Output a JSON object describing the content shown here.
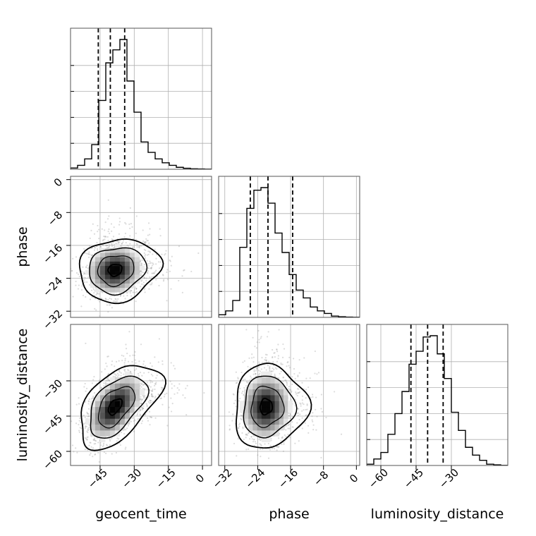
{
  "chart_data": {
    "type": "corner",
    "parameters": [
      {
        "key": "geocent_time",
        "label": "geocent_time",
        "range": [
          -58,
          4
        ],
        "ticks": [
          -45,
          -30,
          -15,
          0
        ],
        "tick_labels": [
          "−45",
          "−30",
          "−15",
          "0"
        ]
      },
      {
        "key": "phase",
        "label": "phase",
        "range": [
          -33.5,
          0.8
        ],
        "ticks": [
          -32,
          -24,
          -16,
          -8,
          0
        ],
        "tick_labels": [
          "−32",
          "−24",
          "−16",
          "−8",
          "0"
        ]
      },
      {
        "key": "luminosity_distance",
        "label": "luminosity_distance",
        "range": [
          -66,
          -6
        ],
        "ticks": [
          -60,
          -45,
          -30
        ],
        "tick_labels": [
          "−60",
          "−45",
          "−30"
        ]
      }
    ],
    "histograms": [
      {
        "parameter": "geocent_time",
        "bin_edges": [
          -58,
          -54.9,
          -51.8,
          -48.7,
          -45.6,
          -42.5,
          -39.4,
          -36.3,
          -33.2,
          -30.1,
          -27,
          -23.9,
          -20.8,
          -17.7,
          -14.6,
          -11.5,
          -8.4,
          -5.3,
          -2.2,
          0.9,
          4
        ],
        "counts": [
          0.01,
          0.03,
          0.08,
          0.19,
          0.53,
          0.82,
          0.92,
          1.0,
          0.68,
          0.44,
          0.21,
          0.13,
          0.08,
          0.05,
          0.03,
          0.015,
          0.008,
          0.004,
          0.002,
          0.001
        ],
        "quantiles": [
          -45.8,
          -40.5,
          -34.2
        ]
      },
      {
        "parameter": "phase",
        "bin_edges": [
          -33.5,
          -31.79,
          -30.07,
          -28.36,
          -26.64,
          -24.93,
          -23.21,
          -21.5,
          -19.78,
          -18.07,
          -16.35,
          -14.64,
          -12.92,
          -11.21,
          -9.49,
          -7.78,
          -6.06,
          -4.35,
          -2.63,
          -0.92,
          0.8
        ],
        "counts": [
          0.02,
          0.05,
          0.13,
          0.54,
          0.84,
          0.98,
          1.0,
          0.88,
          0.65,
          0.5,
          0.33,
          0.21,
          0.15,
          0.08,
          0.05,
          0.03,
          0.01,
          0.005,
          0.002,
          0.001
        ],
        "quantiles": [
          -25.8,
          -21.5,
          -15.5
        ]
      },
      {
        "parameter": "luminosity_distance",
        "bin_edges": [
          -66,
          -63,
          -60,
          -57,
          -54,
          -51,
          -48,
          -45,
          -42,
          -39,
          -36,
          -33,
          -30,
          -27,
          -24,
          -21,
          -18,
          -15,
          -12,
          -9,
          -6
        ],
        "counts": [
          0.01,
          0.05,
          0.1,
          0.24,
          0.4,
          0.57,
          0.78,
          0.88,
          0.99,
          1.0,
          0.86,
          0.67,
          0.41,
          0.27,
          0.14,
          0.08,
          0.04,
          0.01,
          0.005,
          0.001
        ],
        "quantiles": [
          -47.2,
          -40.1,
          -33.5
        ]
      }
    ],
    "pairs": [
      {
        "x": "geocent_time",
        "y": "phase",
        "center": [
          -38.5,
          -22
        ],
        "sigma": [
          6.5,
          3.2
        ],
        "corr": 0.1
      },
      {
        "x": "geocent_time",
        "y": "luminosity_distance",
        "center": [
          -38.5,
          -41
        ],
        "sigma": [
          6.5,
          7.5
        ],
        "corr": 0.5
      },
      {
        "x": "phase",
        "y": "luminosity_distance",
        "center": [
          -22,
          -41
        ],
        "sigma": [
          3.2,
          7.5
        ],
        "corr": 0.05
      }
    ],
    "grid": true
  }
}
